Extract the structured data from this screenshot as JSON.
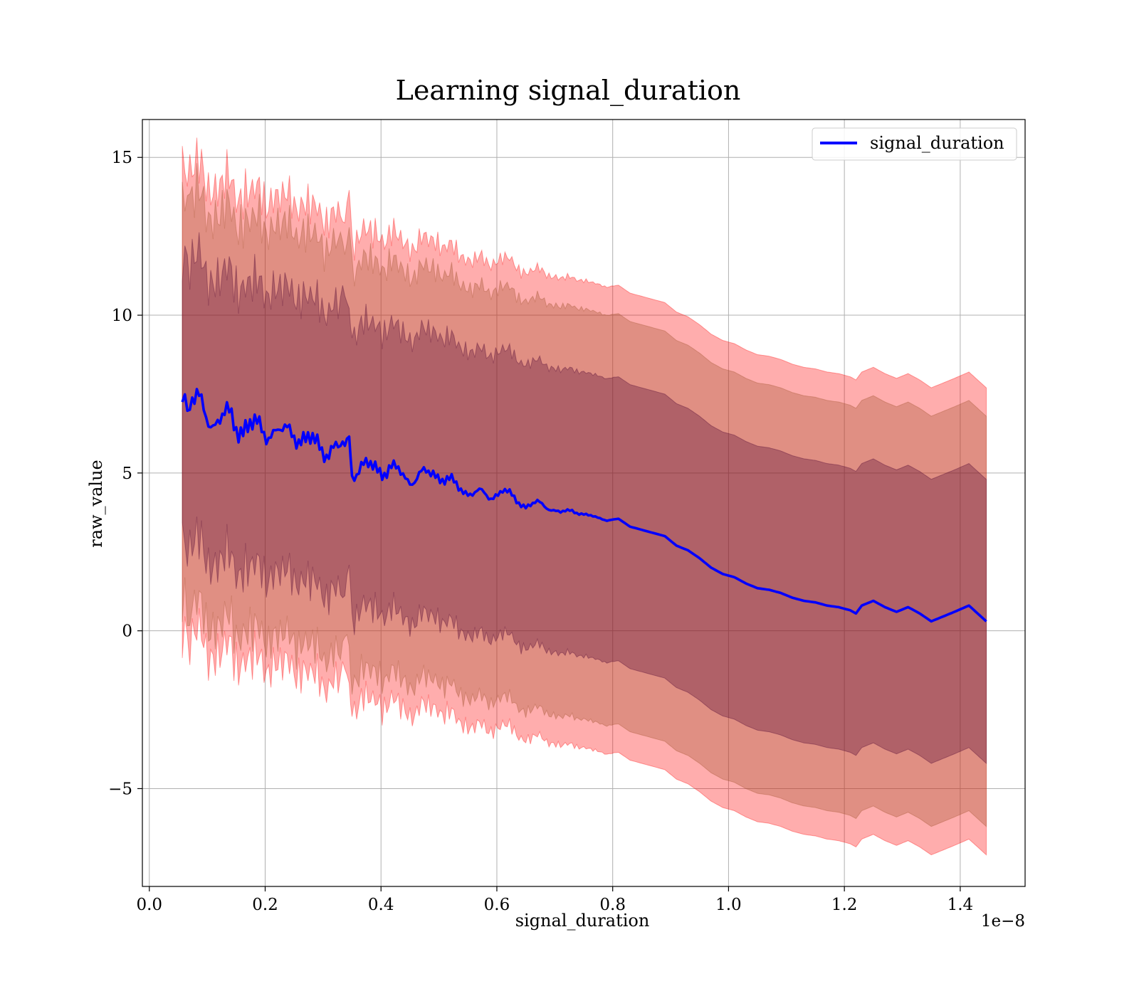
{
  "chart_data": {
    "type": "line",
    "title": "Learning signal_duration",
    "xlabel": "signal_duration",
    "ylabel": "raw_value",
    "x_offset_text": "1e−8",
    "xlim": [
      -0.012,
      1.512
    ],
    "ylim": [
      -8.1,
      16.2
    ],
    "x_ticks": [
      0.0,
      0.2,
      0.4,
      0.6,
      0.8,
      1.0,
      1.2,
      1.4
    ],
    "x_tick_labels": [
      "0.0",
      "0.2",
      "0.4",
      "0.6",
      "0.8",
      "1.0",
      "1.2",
      "1.4"
    ],
    "y_ticks": [
      -5,
      0,
      5,
      10,
      15
    ],
    "y_tick_labels": [
      "−5",
      "0",
      "5",
      "10",
      "15"
    ],
    "grid": true,
    "legend_position": "top-right",
    "colors": {
      "mean_line": "#0000ff",
      "band_outer": "#ff0000",
      "band_middle": "#a0522d",
      "band_inner": "#4b0030"
    },
    "series": [
      {
        "name": "signal_duration",
        "x": [
          0.057,
          0.07,
          0.09,
          0.11,
          0.13,
          0.15,
          0.17,
          0.19,
          0.21,
          0.23,
          0.25,
          0.27,
          0.29,
          0.31,
          0.33,
          0.345,
          0.35,
          0.37,
          0.39,
          0.41,
          0.43,
          0.45,
          0.47,
          0.49,
          0.51,
          0.53,
          0.55,
          0.57,
          0.59,
          0.61,
          0.63,
          0.65,
          0.67,
          0.69,
          0.71,
          0.73,
          0.75,
          0.77,
          0.79,
          0.81,
          0.83,
          0.85,
          0.87,
          0.89,
          0.91,
          0.93,
          0.95,
          0.97,
          0.99,
          1.01,
          1.03,
          1.05,
          1.07,
          1.09,
          1.11,
          1.13,
          1.15,
          1.17,
          1.19,
          1.21,
          1.22,
          1.23,
          1.25,
          1.27,
          1.29,
          1.31,
          1.33,
          1.35,
          1.37,
          1.39,
          1.415,
          1.445
        ],
        "y": [
          7.35,
          7.4,
          7.0,
          6.7,
          6.75,
          6.55,
          6.5,
          6.35,
          6.4,
          6.2,
          6.35,
          6.0,
          5.9,
          5.75,
          5.7,
          5.8,
          5.1,
          5.15,
          5.2,
          5.1,
          5.05,
          4.8,
          4.9,
          5.05,
          4.8,
          4.6,
          4.4,
          4.35,
          4.25,
          4.45,
          4.2,
          3.95,
          4.05,
          3.9,
          3.75,
          3.8,
          3.7,
          3.6,
          3.5,
          3.55,
          3.3,
          3.2,
          3.1,
          3.0,
          2.7,
          2.55,
          2.3,
          2.0,
          1.8,
          1.7,
          1.5,
          1.35,
          1.3,
          1.2,
          1.05,
          0.95,
          0.9,
          0.8,
          0.75,
          0.65,
          0.55,
          0.8,
          0.95,
          0.75,
          0.6,
          0.75,
          0.55,
          0.3,
          0.45,
          0.6,
          0.8,
          0.3
        ]
      }
    ],
    "bands": [
      {
        "level": "outer",
        "upper_offset": 7.4,
        "lower_offset": 7.4
      },
      {
        "level": "middle",
        "upper_offset": 6.5,
        "lower_offset": 6.5
      },
      {
        "level": "inner",
        "upper_offset": 4.5,
        "lower_offset": 4.5
      }
    ]
  }
}
